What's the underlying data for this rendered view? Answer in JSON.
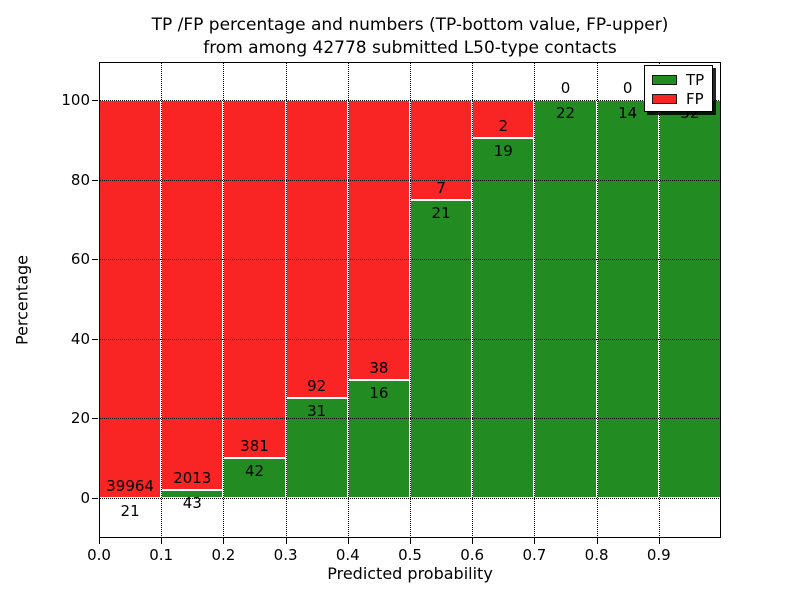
{
  "title": {
    "line1": "TP /FP percentage and numbers (TP-bottom value, FP-upper)",
    "line2": "from among 42778 submitted L50-type contacts"
  },
  "axes": {
    "x_label": "Predicted probability",
    "y_label": "Percentage",
    "x_tick_labels": [
      "0.0",
      "0.1",
      "0.2",
      "0.3",
      "0.4",
      "0.5",
      "0.6",
      "0.7",
      "0.8",
      "0.9"
    ],
    "y_tick_labels": [
      "0",
      "20",
      "40",
      "60",
      "80",
      "100"
    ],
    "y_tick_values": [
      0,
      20,
      40,
      60,
      80,
      100
    ]
  },
  "legend": {
    "items": [
      {
        "label": "TP",
        "color": "#228b22"
      },
      {
        "label": "FP",
        "color": "#f92525"
      }
    ]
  },
  "chart_data": {
    "type": "bar",
    "stacked": true,
    "normalized": "each bin stacked to 100%",
    "title": "TP /FP percentage and numbers (TP-bottom value, FP-upper) from among 42778 submitted L50-type contacts",
    "xlabel": "Predicted probability",
    "ylabel": "Percentage",
    "x_bin_edges": [
      0.0,
      0.1,
      0.2,
      0.3,
      0.4,
      0.5,
      0.6,
      0.7,
      0.8,
      0.9,
      1.0
    ],
    "xlim": [
      0.0,
      1.0
    ],
    "ylim": [
      -10.8,
      109.5
    ],
    "grid": true,
    "grid_style": "dotted",
    "legend_position": "upper right",
    "total_submitted": 42778,
    "series": [
      {
        "name": "TP",
        "color": "#228b22",
        "counts": [
          21,
          43,
          42,
          31,
          16,
          21,
          19,
          22,
          14,
          52
        ]
      },
      {
        "name": "FP",
        "color": "#f92525",
        "counts": [
          39964,
          2013,
          381,
          92,
          38,
          7,
          2,
          0,
          0,
          0
        ]
      }
    ],
    "tp_percent_per_bin": [
      0.05,
      2.09,
      9.93,
      25.2,
      29.63,
      75.0,
      90.48,
      100.0,
      100.0,
      100.0
    ],
    "bar_value_labels": {
      "tp": [
        "21",
        "43",
        "42",
        "31",
        "16",
        "21",
        "19",
        "22",
        "14",
        "52"
      ],
      "fp": [
        "39964",
        "2013",
        "381",
        "92",
        "38",
        "7",
        "2",
        "0",
        "0",
        "0"
      ]
    }
  }
}
